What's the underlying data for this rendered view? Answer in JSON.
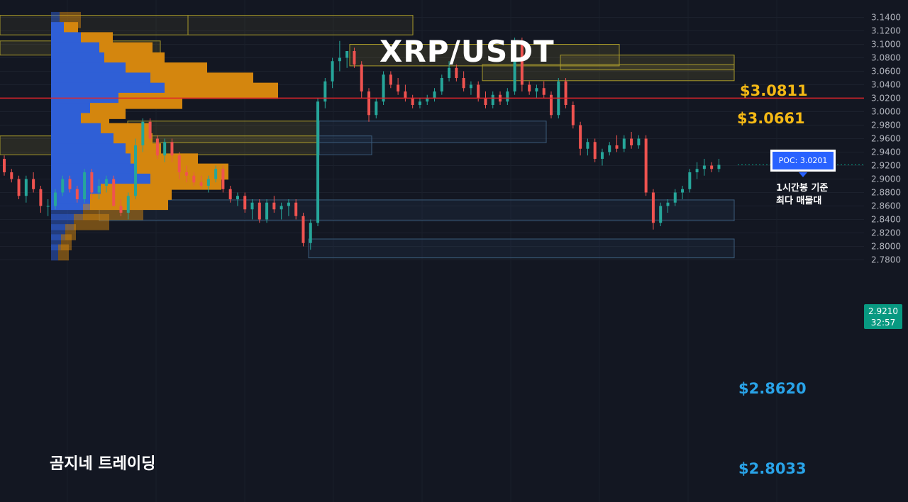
{
  "chart_data": {
    "type": "candlestick",
    "title": "XRP/USDT",
    "watermark": "곰지네 트레이딩",
    "yaxis": {
      "range": [
        2.78,
        3.15
      ],
      "ticks": [
        "3.1400",
        "3.1200",
        "3.1000",
        "3.0800",
        "3.0600",
        "3.0400",
        "3.0200",
        "3.0000",
        "2.9800",
        "2.9600",
        "2.9400",
        "2.9200",
        "2.9000",
        "2.8800",
        "2.8600",
        "2.8400",
        "2.8200",
        "2.8000",
        "2.7800"
      ]
    },
    "current_price": {
      "value": "2.9210",
      "countdown": "32:57"
    },
    "poc": {
      "label": "POC: 3.0201",
      "value": 3.0201,
      "note_line1": "1시간봉 기준",
      "note_line2": "최다 매물대"
    },
    "levels": [
      {
        "label": "$3.0811",
        "value": 3.0811,
        "color": "#f5b915"
      },
      {
        "label": "$3.0661",
        "value": 3.0661,
        "color": "#f5b915"
      },
      {
        "label": "$2.8620",
        "value": 2.862,
        "color": "#29a3e8"
      },
      {
        "label": "$2.8033",
        "value": 2.8033,
        "color": "#29a3e8"
      }
    ],
    "candles": [
      [
        2.93,
        2.935,
        2.905,
        2.91
      ],
      [
        2.91,
        2.915,
        2.895,
        2.9
      ],
      [
        2.9,
        2.905,
        2.87,
        2.875
      ],
      [
        2.875,
        2.905,
        2.865,
        2.9
      ],
      [
        2.9,
        2.91,
        2.88,
        2.885
      ],
      [
        2.885,
        2.89,
        2.85,
        2.86
      ],
      [
        2.86,
        2.87,
        2.845,
        2.86
      ],
      [
        2.86,
        2.885,
        2.855,
        2.88
      ],
      [
        2.88,
        2.905,
        2.875,
        2.9
      ],
      [
        2.9,
        2.905,
        2.88,
        2.885
      ],
      [
        2.885,
        2.89,
        2.865,
        2.87
      ],
      [
        2.87,
        2.915,
        2.865,
        2.91
      ],
      [
        2.91,
        2.915,
        2.87,
        2.88
      ],
      [
        2.88,
        2.9,
        2.87,
        2.89
      ],
      [
        2.89,
        2.905,
        2.88,
        2.9
      ],
      [
        2.9,
        2.905,
        2.86,
        2.86
      ],
      [
        2.86,
        2.87,
        2.845,
        2.85
      ],
      [
        2.85,
        2.88,
        2.84,
        2.875
      ],
      [
        2.875,
        2.96,
        2.87,
        2.95
      ],
      [
        2.95,
        2.99,
        2.94,
        2.985
      ],
      [
        2.985,
        2.99,
        2.955,
        2.96
      ],
      [
        2.96,
        2.965,
        2.93,
        2.935
      ],
      [
        2.935,
        2.96,
        2.925,
        2.955
      ],
      [
        2.955,
        2.96,
        2.925,
        2.935
      ],
      [
        2.935,
        2.94,
        2.9,
        2.91
      ],
      [
        2.91,
        2.92,
        2.895,
        2.905
      ],
      [
        2.905,
        2.91,
        2.89,
        2.895
      ],
      [
        2.895,
        2.905,
        2.885,
        2.89
      ],
      [
        2.89,
        2.905,
        2.88,
        2.9
      ],
      [
        2.9,
        2.92,
        2.895,
        2.915
      ],
      [
        2.915,
        2.92,
        2.88,
        2.885
      ],
      [
        2.885,
        2.89,
        2.865,
        2.87
      ],
      [
        2.87,
        2.88,
        2.86,
        2.875
      ],
      [
        2.875,
        2.88,
        2.85,
        2.855
      ],
      [
        2.855,
        2.87,
        2.84,
        2.865
      ],
      [
        2.865,
        2.87,
        2.835,
        2.84
      ],
      [
        2.84,
        2.87,
        2.835,
        2.865
      ],
      [
        2.865,
        2.875,
        2.85,
        2.855
      ],
      [
        2.855,
        2.865,
        2.84,
        2.86
      ],
      [
        2.86,
        2.87,
        2.845,
        2.865
      ],
      [
        2.865,
        2.87,
        2.84,
        2.845
      ],
      [
        2.845,
        2.85,
        2.8,
        2.805
      ],
      [
        2.805,
        2.84,
        2.795,
        2.835
      ],
      [
        2.835,
        3.02,
        2.83,
        3.015
      ],
      [
        3.015,
        3.05,
        3.005,
        3.045
      ],
      [
        3.045,
        3.08,
        3.035,
        3.075
      ],
      [
        3.075,
        3.105,
        3.06,
        3.08
      ],
      [
        3.08,
        3.09,
        3.065,
        3.09
      ],
      [
        3.09,
        3.095,
        3.065,
        3.07
      ],
      [
        3.07,
        3.075,
        3.02,
        3.03
      ],
      [
        3.03,
        3.035,
        2.985,
        2.995
      ],
      [
        2.995,
        3.02,
        2.99,
        3.015
      ],
      [
        3.015,
        3.06,
        3.01,
        3.055
      ],
      [
        3.055,
        3.06,
        3.035,
        3.04
      ],
      [
        3.04,
        3.05,
        3.025,
        3.03
      ],
      [
        3.03,
        3.04,
        3.015,
        3.02
      ],
      [
        3.02,
        3.025,
        3.005,
        3.01
      ],
      [
        3.01,
        3.02,
        3.005,
        3.015
      ],
      [
        3.015,
        3.025,
        3.01,
        3.02
      ],
      [
        3.02,
        3.035,
        3.015,
        3.03
      ],
      [
        3.03,
        3.055,
        3.025,
        3.05
      ],
      [
        3.05,
        3.075,
        3.045,
        3.065
      ],
      [
        3.065,
        3.07,
        3.045,
        3.05
      ],
      [
        3.05,
        3.06,
        3.03,
        3.035
      ],
      [
        3.035,
        3.045,
        3.025,
        3.04
      ],
      [
        3.04,
        3.045,
        3.015,
        3.02
      ],
      [
        3.02,
        3.03,
        3.005,
        3.01
      ],
      [
        3.01,
        3.03,
        3.005,
        3.025
      ],
      [
        3.025,
        3.03,
        3.01,
        3.015
      ],
      [
        3.015,
        3.035,
        3.01,
        3.03
      ],
      [
        3.03,
        3.11,
        3.025,
        3.105
      ],
      [
        3.105,
        3.11,
        3.03,
        3.04
      ],
      [
        3.04,
        3.045,
        3.025,
        3.03
      ],
      [
        3.03,
        3.04,
        3.02,
        3.035
      ],
      [
        3.035,
        3.045,
        3.02,
        3.025
      ],
      [
        3.025,
        3.03,
        2.99,
        2.995
      ],
      [
        2.995,
        3.05,
        2.99,
        3.045
      ],
      [
        3.045,
        3.05,
        3.005,
        3.01
      ],
      [
        3.01,
        3.015,
        2.975,
        2.98
      ],
      [
        2.98,
        2.985,
        2.935,
        2.945
      ],
      [
        2.945,
        2.96,
        2.935,
        2.955
      ],
      [
        2.955,
        2.96,
        2.925,
        2.93
      ],
      [
        2.93,
        2.945,
        2.92,
        2.94
      ],
      [
        2.94,
        2.955,
        2.935,
        2.95
      ],
      [
        2.95,
        2.965,
        2.94,
        2.945
      ],
      [
        2.945,
        2.965,
        2.94,
        2.96
      ],
      [
        2.96,
        2.97,
        2.945,
        2.95
      ],
      [
        2.95,
        2.965,
        2.945,
        2.96
      ],
      [
        2.96,
        2.965,
        2.875,
        2.88
      ],
      [
        2.88,
        2.885,
        2.825,
        2.835
      ],
      [
        2.835,
        2.865,
        2.83,
        2.86
      ],
      [
        2.86,
        2.87,
        2.85,
        2.865
      ],
      [
        2.865,
        2.885,
        2.86,
        2.88
      ],
      [
        2.88,
        2.89,
        2.87,
        2.885
      ],
      [
        2.885,
        2.915,
        2.88,
        2.91
      ],
      [
        2.91,
        2.925,
        2.9,
        2.915
      ],
      [
        2.915,
        2.93,
        2.905,
        2.92
      ],
      [
        2.92,
        2.925,
        2.91,
        2.915
      ],
      [
        2.915,
        2.93,
        2.91,
        2.921
      ]
    ],
    "volume_profile": [
      [
        3.135,
        12,
        30
      ],
      [
        3.12,
        18,
        20
      ],
      [
        3.105,
        42,
        45
      ],
      [
        3.09,
        68,
        75
      ],
      [
        3.075,
        75,
        85
      ],
      [
        3.06,
        105,
        115
      ],
      [
        3.045,
        140,
        145
      ],
      [
        3.03,
        160,
        160
      ],
      [
        3.015,
        95,
        90
      ],
      [
        3.0,
        55,
        50
      ],
      [
        2.985,
        42,
        40
      ],
      [
        2.97,
        70,
        70
      ],
      [
        2.955,
        88,
        55
      ],
      [
        2.94,
        105,
        50
      ],
      [
        2.925,
        112,
        95
      ],
      [
        2.91,
        120,
        130
      ],
      [
        2.895,
        140,
        100
      ],
      [
        2.88,
        70,
        100
      ],
      [
        2.865,
        55,
        110
      ],
      [
        2.85,
        45,
        85
      ],
      [
        2.835,
        32,
        50
      ],
      [
        2.82,
        20,
        15
      ],
      [
        2.805,
        14,
        15
      ],
      [
        2.79,
        10,
        15
      ]
    ]
  }
}
